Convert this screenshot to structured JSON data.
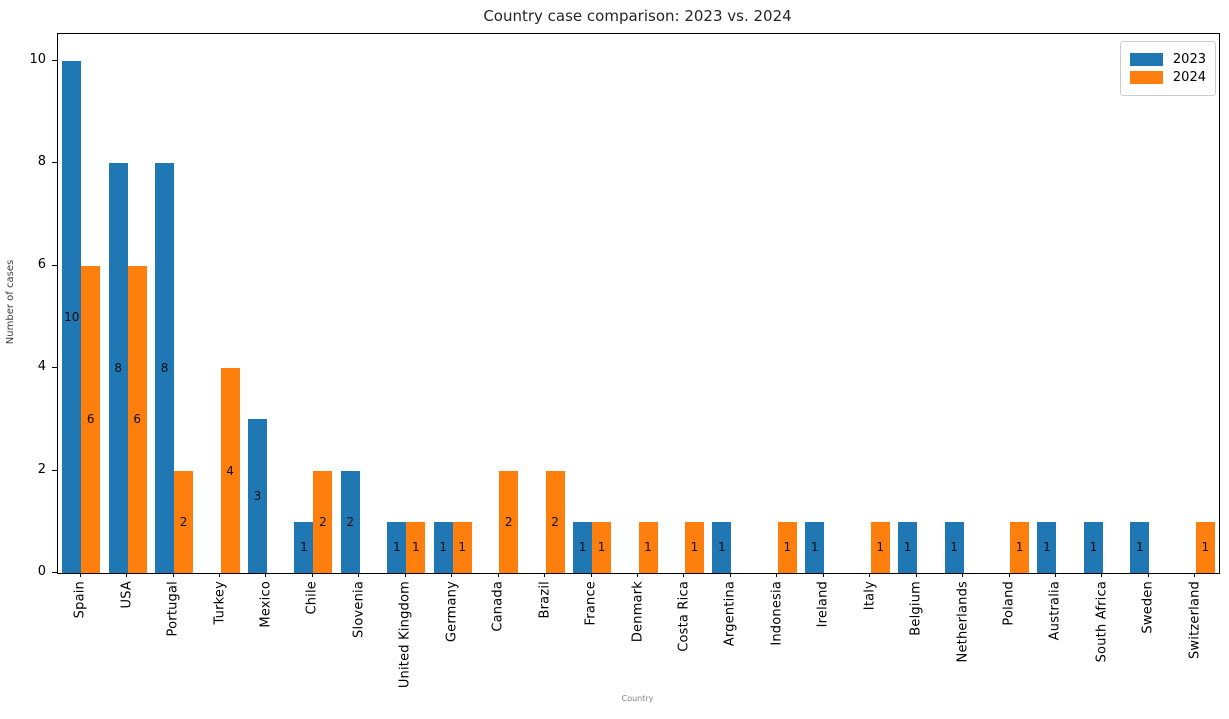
{
  "figure": {
    "title": "Country case comparison: 2023 vs. 2024",
    "x_axis_label": "Country",
    "y_axis_label": "Number of cases"
  },
  "legend": {
    "position": "upper right",
    "items": [
      {
        "label": "2023",
        "color": "#1f77b4"
      },
      {
        "label": "2024",
        "color": "#ff7f0e"
      }
    ]
  },
  "chart_data": {
    "type": "bar",
    "title": "Country case comparison: 2023 vs. 2024",
    "xlabel": "Country",
    "ylabel": "Number of cases",
    "grid": false,
    "legend_position": "upper right",
    "bar_value_labels": "value drawn in black at half bar height, zero bars unlabeled",
    "yticks": [
      0,
      2,
      4,
      6,
      8,
      10
    ],
    "ylim": [
      0,
      10.5
    ],
    "categories": [
      "Spain",
      "USA",
      "Portugal",
      "Turkey",
      "Mexico",
      "Chile",
      "Slovenia",
      "United Kingdom",
      "Germany",
      "Canada",
      "Brazil",
      "France",
      "Denmark",
      "Costa Rica",
      "Argentina",
      "Indonesia",
      "Ireland",
      "Italy",
      "Belgium",
      "Netherlands",
      "Poland",
      "Australia",
      "South Africa",
      "Sweden",
      "Switzerland"
    ],
    "series": [
      {
        "name": "2023",
        "color": "#1f77b4",
        "values": [
          10,
          8,
          8,
          0,
          3,
          1,
          2,
          1,
          1,
          0,
          0,
          1,
          0,
          0,
          1,
          0,
          1,
          0,
          1,
          1,
          0,
          1,
          1,
          1,
          0
        ]
      },
      {
        "name": "2024",
        "color": "#ff7f0e",
        "values": [
          6,
          6,
          2,
          4,
          0,
          2,
          0,
          1,
          1,
          2,
          2,
          1,
          1,
          1,
          0,
          1,
          0,
          1,
          0,
          0,
          1,
          0,
          0,
          0,
          1
        ]
      }
    ]
  }
}
